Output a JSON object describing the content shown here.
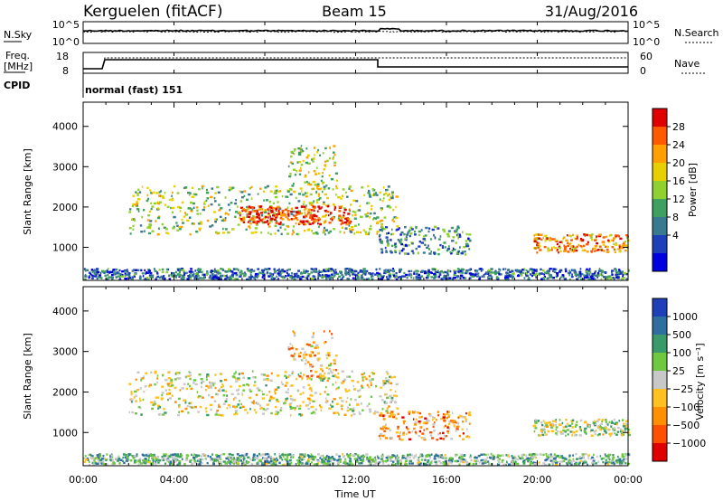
{
  "header": {
    "station": "Kerguelen (fitACF)",
    "beam": "Beam 15",
    "date": "31/Aug/2016"
  },
  "top_panel": {
    "nsky_label": "N.Sky",
    "nsky_ticks": [
      "10^5",
      "10^0"
    ],
    "nsearch_label": "N.Search",
    "nsearch_ticks": [
      "10^5",
      "10^0"
    ],
    "freq_label": "Freq.",
    "freq_unit": "[MHz]",
    "freq_ticks": [
      "18",
      "8"
    ],
    "nave_label": "Nave",
    "nave_ticks": [
      "60",
      "0"
    ],
    "cpid_label": "CPID",
    "cpid_value": "normal (fast) 151"
  },
  "chart_data": [
    {
      "type": "heatmap",
      "title": "",
      "xlabel": "",
      "ylabel": "Slant Range [km]",
      "x_range_hours": [
        0,
        24
      ],
      "xticks": [
        "00:00",
        "04:00",
        "08:00",
        "12:00",
        "16:00",
        "20:00",
        "00:00"
      ],
      "ylim": [
        180,
        4600
      ],
      "yticks": [
        1000,
        2000,
        3000,
        4000
      ],
      "colorbar": {
        "label": "Power [dB]",
        "ticks": [
          "28",
          "24",
          "20",
          "16",
          "12",
          "8",
          "4"
        ],
        "colors": [
          "#e00000",
          "#ff5a00",
          "#ffa000",
          "#e8d000",
          "#90d030",
          "#40a060",
          "#3a7a90",
          "#1f3fb8",
          "#0000e0"
        ]
      },
      "echo_regions": [
        {
          "t0": 2.0,
          "t1": 13.8,
          "r0": 1300,
          "r1": 2500,
          "level": 0.5
        },
        {
          "t0": 6.8,
          "t1": 11.7,
          "r0": 1550,
          "r1": 2000,
          "level": 0.9
        },
        {
          "t0": 9.0,
          "t1": 11.2,
          "r0": 2300,
          "r1": 3500,
          "level": 0.55
        },
        {
          "t0": 13.0,
          "t1": 17.0,
          "r0": 800,
          "r1": 1500,
          "level": 0.3
        },
        {
          "t0": 19.8,
          "t1": 24.0,
          "r0": 850,
          "r1": 1300,
          "level": 0.75
        },
        {
          "t0": 0.0,
          "t1": 24.0,
          "r0": 180,
          "r1": 450,
          "level": 0.25
        }
      ]
    },
    {
      "type": "heatmap",
      "title": "",
      "xlabel": "Time UT",
      "ylabel": "Slant Range [km]",
      "x_range_hours": [
        0,
        24
      ],
      "xticks": [
        "00:00",
        "04:00",
        "08:00",
        "12:00",
        "16:00",
        "20:00",
        "00:00"
      ],
      "ylim": [
        180,
        4600
      ],
      "yticks": [
        1000,
        2000,
        3000,
        4000
      ],
      "colorbar": {
        "label": "Velocity [m s⁻¹]",
        "ticks": [
          "1000",
          "500",
          "100",
          "25",
          "−25",
          "−100",
          "−500",
          "−1000"
        ],
        "colors": [
          "#1f3fb8",
          "#2f6fa0",
          "#3a9a6a",
          "#70c840",
          "#c8c8c8",
          "#ffc020",
          "#ff9000",
          "#ff5000",
          "#e00000"
        ]
      },
      "echo_regions": [
        {
          "t0": 2.0,
          "t1": 13.8,
          "r0": 1400,
          "r1": 2500,
          "level": 0.5
        },
        {
          "t0": 9.0,
          "t1": 11.2,
          "r0": 2300,
          "r1": 3500,
          "level": 0.35
        },
        {
          "t0": 13.0,
          "t1": 17.0,
          "r0": 800,
          "r1": 1500,
          "level": 0.3
        },
        {
          "t0": 19.8,
          "t1": 24.0,
          "r0": 900,
          "r1": 1300,
          "level": 0.55
        },
        {
          "t0": 0.0,
          "t1": 24.0,
          "r0": 180,
          "r1": 450,
          "level": 0.65
        }
      ]
    }
  ]
}
